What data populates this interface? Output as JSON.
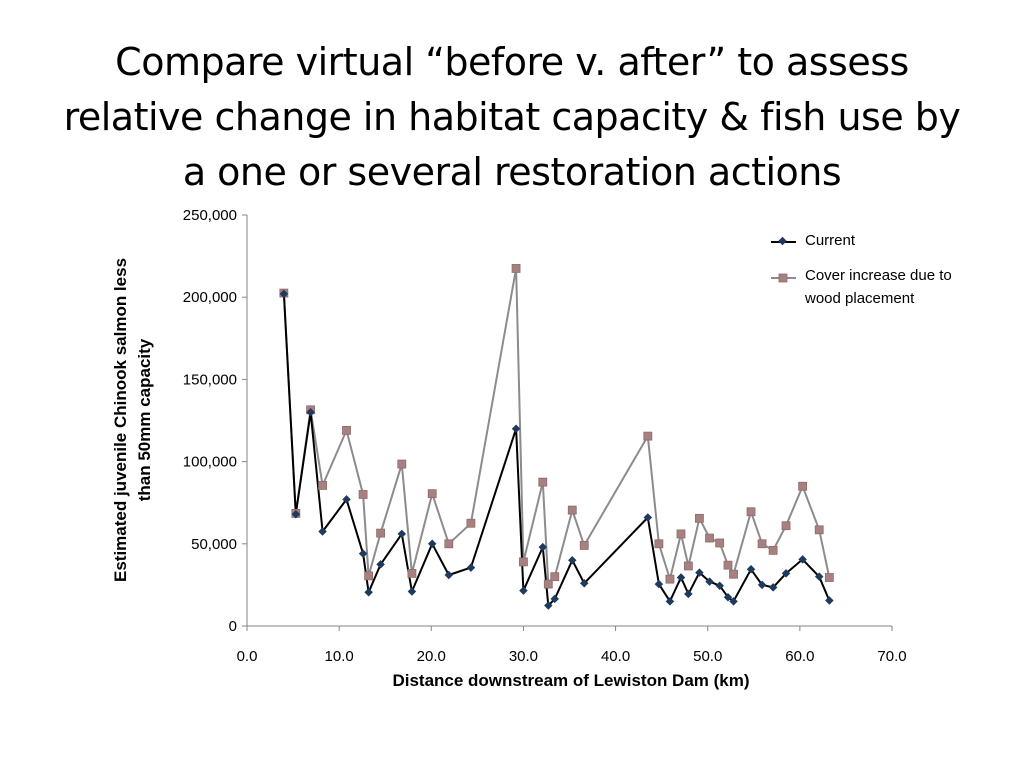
{
  "slide": {
    "title_lines": [
      "Compare virtual “before v. after” to assess",
      "relative change in habitat capacity & fish use by",
      "a one or several restoration actions"
    ]
  },
  "chart_data": {
    "type": "line",
    "xlabel": "Distance downstream of Lewiston Dam (km)",
    "ylabel_lines": [
      "Estimated juvenile Chinook salmon less",
      "than 50mm capacity"
    ],
    "xlim": [
      0,
      70
    ],
    "ylim": [
      0,
      250000
    ],
    "x_ticks": [
      0,
      10,
      20,
      30,
      40,
      50,
      60,
      70
    ],
    "x_tick_labels": [
      "0.0",
      "10.0",
      "20.0",
      "30.0",
      "40.0",
      "50.0",
      "60.0",
      "70.0"
    ],
    "y_ticks": [
      0,
      50000,
      100000,
      150000,
      200000,
      250000
    ],
    "y_tick_labels": [
      "0",
      "50,000",
      "100,000",
      "150,000",
      "200,000",
      "250,000"
    ],
    "grid": false,
    "legend_position": "top-right",
    "series": [
      {
        "name": "Current",
        "color": "#000000",
        "marker": "diamond",
        "marker_color": "#1f3a5f",
        "points": [
          [
            4.0,
            202000
          ],
          [
            5.3,
            68000
          ],
          [
            6.9,
            130000
          ],
          [
            8.2,
            57500
          ],
          [
            10.8,
            77000
          ],
          [
            12.6,
            44000
          ],
          [
            13.2,
            20500
          ],
          [
            14.5,
            37500
          ],
          [
            16.8,
            56000
          ],
          [
            17.9,
            21000
          ],
          [
            20.1,
            50000
          ],
          [
            21.9,
            31000
          ],
          [
            24.3,
            35500
          ],
          [
            29.2,
            120000
          ],
          [
            30.0,
            21500
          ],
          [
            32.1,
            48000
          ],
          [
            32.7,
            12500
          ],
          [
            33.4,
            16500
          ],
          [
            35.3,
            40000
          ],
          [
            36.6,
            26000
          ],
          [
            43.5,
            66000
          ],
          [
            44.7,
            25500
          ],
          [
            45.9,
            15000
          ],
          [
            47.1,
            29500
          ],
          [
            47.9,
            19500
          ],
          [
            49.1,
            32500
          ],
          [
            50.2,
            27000
          ],
          [
            51.3,
            24500
          ],
          [
            52.2,
            17500
          ],
          [
            52.8,
            15000
          ],
          [
            54.7,
            34500
          ],
          [
            55.9,
            25000
          ],
          [
            57.1,
            23500
          ],
          [
            58.5,
            32000
          ],
          [
            60.3,
            40500
          ],
          [
            62.1,
            30000
          ],
          [
            63.2,
            15500
          ]
        ]
      },
      {
        "name": "Cover increase due to wood placement",
        "color": "#8c8c8c",
        "marker": "square",
        "marker_color": "#a88080",
        "points": [
          [
            4.0,
            202500
          ],
          [
            5.3,
            68500
          ],
          [
            6.9,
            131500
          ],
          [
            8.2,
            85500
          ],
          [
            10.8,
            119000
          ],
          [
            12.6,
            80000
          ],
          [
            13.2,
            30500
          ],
          [
            14.5,
            56500
          ],
          [
            16.8,
            98500
          ],
          [
            17.9,
            32000
          ],
          [
            20.1,
            80500
          ],
          [
            21.9,
            50000
          ],
          [
            24.3,
            62500
          ],
          [
            29.2,
            217500
          ],
          [
            30.0,
            39000
          ],
          [
            32.1,
            87500
          ],
          [
            32.7,
            25500
          ],
          [
            33.4,
            30000
          ],
          [
            35.3,
            70500
          ],
          [
            36.6,
            49000
          ],
          [
            43.5,
            115500
          ],
          [
            44.7,
            50000
          ],
          [
            45.9,
            28500
          ],
          [
            47.1,
            56000
          ],
          [
            47.9,
            36500
          ],
          [
            49.1,
            65500
          ],
          [
            50.2,
            53500
          ],
          [
            51.3,
            50500
          ],
          [
            52.2,
            37000
          ],
          [
            52.8,
            31500
          ],
          [
            54.7,
            69500
          ],
          [
            55.9,
            50000
          ],
          [
            57.1,
            46000
          ],
          [
            58.5,
            61000
          ],
          [
            60.3,
            85000
          ],
          [
            62.1,
            58500
          ],
          [
            63.2,
            29500
          ]
        ]
      }
    ]
  }
}
